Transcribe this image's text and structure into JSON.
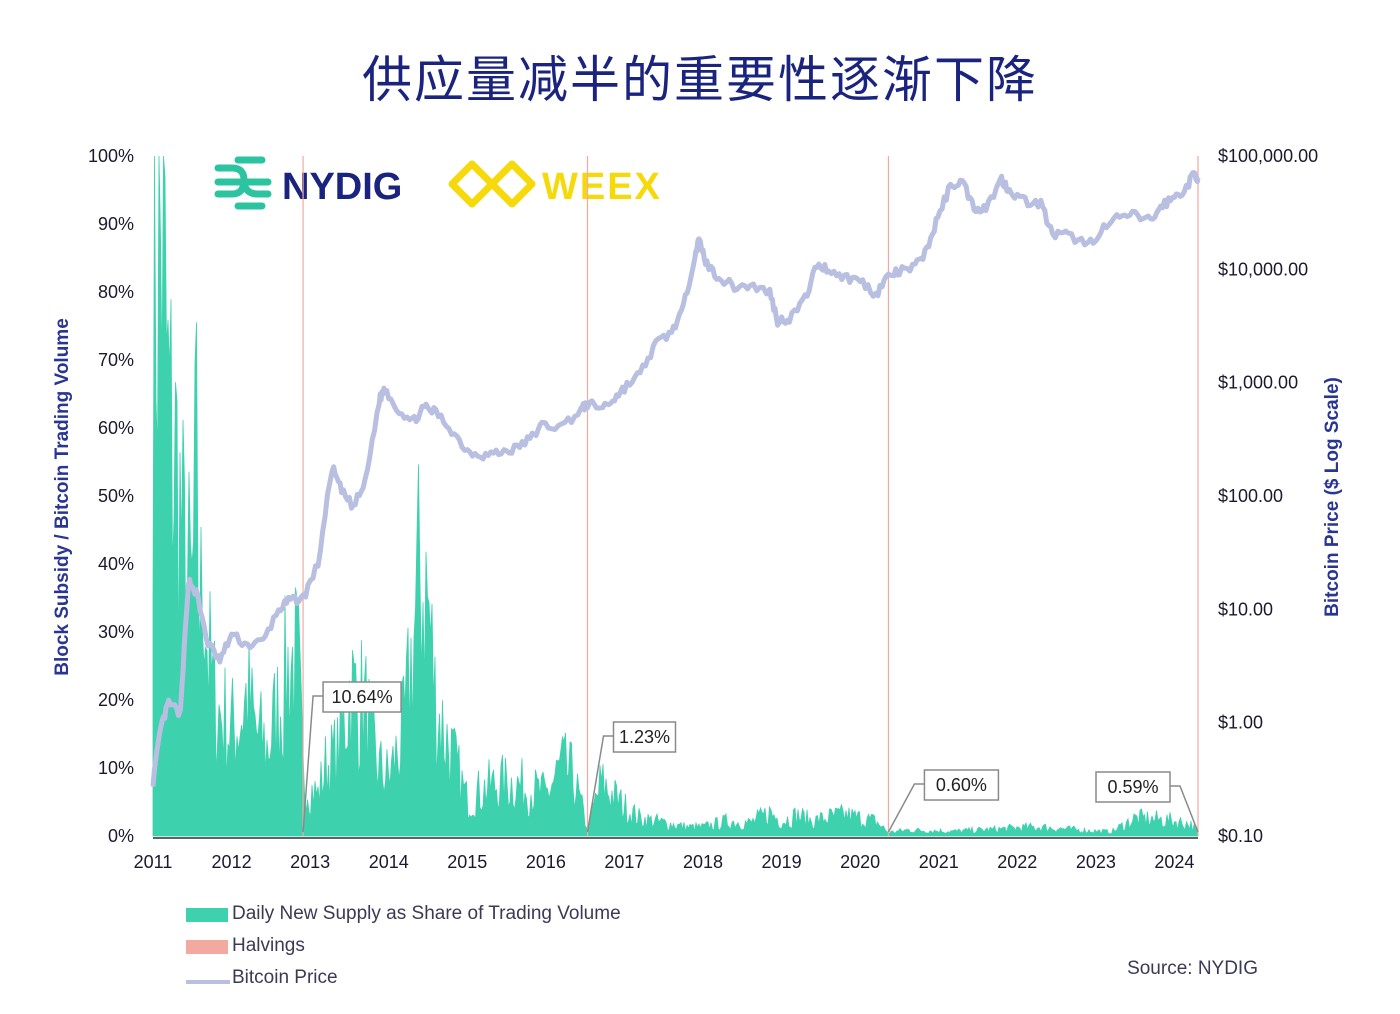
{
  "title": "供应量减半的重要性逐渐下降",
  "logos": {
    "nydig": "NYDIG",
    "weex": "WEEX",
    "nydig_color": "#2cc4a0",
    "nydig_text_color": "#1a237e",
    "weex_color": "#f5d90a"
  },
  "source": "Source: NYDIG",
  "legend": [
    {
      "label": "Daily New Supply as Share of Trading Volume",
      "color": "#3ed1ad",
      "kind": "swatch"
    },
    {
      "label": "Halvings",
      "color": "#f4a9a0",
      "kind": "swatch"
    },
    {
      "label": "Bitcoin Price",
      "color": "#b8bfe0",
      "kind": "line"
    }
  ],
  "chart_data": {
    "type": "area",
    "x_axis": {
      "range": [
        2011.0,
        2024.3
      ],
      "ticks": [
        "2011",
        "2012",
        "2013",
        "2014",
        "2015",
        "2016",
        "2017",
        "2018",
        "2019",
        "2020",
        "2021",
        "2022",
        "2023",
        "2024"
      ]
    },
    "y_left": {
      "label": "Block Subsidy / Bitcoin Trading Volume",
      "range": [
        0,
        100
      ],
      "ticks": [
        "0%",
        "10%",
        "20%",
        "30%",
        "40%",
        "50%",
        "60%",
        "70%",
        "80%",
        "90%",
        "100%"
      ]
    },
    "y_right": {
      "label": "Bitcoin Price ($ Log Scale)",
      "scale": "log",
      "range": [
        0.1,
        100000
      ],
      "ticks": [
        "$0.10",
        "$1.00",
        "$10.00",
        "$100.00",
        "$1,000.00",
        "$10,000.00",
        "$100,000.00"
      ]
    },
    "halvings": [
      2012.91,
      2016.53,
      2020.36,
      2024.3
    ],
    "callouts": [
      {
        "label": "10.64%",
        "x": 2012.91,
        "y": 10.64
      },
      {
        "label": "1.23%",
        "x": 2016.53,
        "y": 1.23
      },
      {
        "label": "0.60%",
        "x": 2020.36,
        "y": 0.6
      },
      {
        "label": "0.59%",
        "x": 2024.3,
        "y": 0.59
      }
    ],
    "series": [
      {
        "name": "Daily New Supply as Share of Trading Volume",
        "axis": "left",
        "color": "#3ed1ad",
        "points": [
          [
            2011.0,
            100
          ],
          [
            2011.12,
            100
          ],
          [
            2011.2,
            70
          ],
          [
            2011.3,
            62
          ],
          [
            2011.4,
            45
          ],
          [
            2011.5,
            40
          ],
          [
            2011.55,
            62
          ],
          [
            2011.6,
            35
          ],
          [
            2011.65,
            50
          ],
          [
            2011.7,
            30
          ],
          [
            2011.8,
            22
          ],
          [
            2011.9,
            20
          ],
          [
            2012.0,
            18
          ],
          [
            2012.1,
            20
          ],
          [
            2012.2,
            24
          ],
          [
            2012.3,
            18
          ],
          [
            2012.45,
            15
          ],
          [
            2012.6,
            22
          ],
          [
            2012.75,
            30
          ],
          [
            2012.85,
            28
          ],
          [
            2012.91,
            10.6
          ],
          [
            2013.0,
            8
          ],
          [
            2013.1,
            7
          ],
          [
            2013.2,
            12
          ],
          [
            2013.35,
            14
          ],
          [
            2013.5,
            25
          ],
          [
            2013.7,
            22
          ],
          [
            2013.85,
            12
          ],
          [
            2014.0,
            10
          ],
          [
            2014.2,
            18
          ],
          [
            2014.4,
            45
          ],
          [
            2014.5,
            40
          ],
          [
            2014.6,
            22
          ],
          [
            2014.8,
            14
          ],
          [
            2015.0,
            6
          ],
          [
            2015.2,
            8
          ],
          [
            2015.4,
            9
          ],
          [
            2015.6,
            9
          ],
          [
            2015.8,
            8
          ],
          [
            2016.0,
            7
          ],
          [
            2016.2,
            12
          ],
          [
            2016.35,
            10
          ],
          [
            2016.53,
            1.2
          ],
          [
            2016.7,
            9
          ],
          [
            2016.85,
            7
          ],
          [
            2017.0,
            5
          ],
          [
            2017.2,
            3
          ],
          [
            2017.4,
            2.5
          ],
          [
            2017.6,
            2
          ],
          [
            2017.8,
            1.5
          ],
          [
            2018.0,
            1.5
          ],
          [
            2018.3,
            2.5
          ],
          [
            2018.6,
            2.2
          ],
          [
            2018.85,
            4
          ],
          [
            2019.0,
            2.5
          ],
          [
            2019.2,
            3.5
          ],
          [
            2019.4,
            2.5
          ],
          [
            2019.6,
            3.2
          ],
          [
            2019.8,
            3.6
          ],
          [
            2020.0,
            3
          ],
          [
            2020.2,
            2.5
          ],
          [
            2020.36,
            0.6
          ],
          [
            2020.6,
            1
          ],
          [
            2020.9,
            0.9
          ],
          [
            2021.2,
            0.8
          ],
          [
            2021.5,
            1
          ],
          [
            2021.8,
            1.2
          ],
          [
            2022.0,
            1.4
          ],
          [
            2022.3,
            1.5
          ],
          [
            2022.6,
            1.2
          ],
          [
            2022.9,
            0.9
          ],
          [
            2023.2,
            0.7
          ],
          [
            2023.5,
            3
          ],
          [
            2023.8,
            2.8
          ],
          [
            2024.0,
            2.5
          ],
          [
            2024.2,
            2
          ],
          [
            2024.3,
            0.6
          ]
        ]
      },
      {
        "name": "Bitcoin Price",
        "axis": "right",
        "color": "#b8bfe0",
        "points": [
          [
            2011.0,
            0.3
          ],
          [
            2011.1,
            0.9
          ],
          [
            2011.2,
            1.5
          ],
          [
            2011.35,
            1.2
          ],
          [
            2011.45,
            18
          ],
          [
            2011.55,
            14
          ],
          [
            2011.7,
            5
          ],
          [
            2011.85,
            3.5
          ],
          [
            2012.0,
            6
          ],
          [
            2012.2,
            4.8
          ],
          [
            2012.4,
            5.2
          ],
          [
            2012.6,
            10
          ],
          [
            2012.75,
            12
          ],
          [
            2012.91,
            12.5
          ],
          [
            2013.1,
            25
          ],
          [
            2013.28,
            180
          ],
          [
            2013.4,
            110
          ],
          [
            2013.55,
            80
          ],
          [
            2013.7,
            130
          ],
          [
            2013.88,
            700
          ],
          [
            2013.95,
            900
          ],
          [
            2014.1,
            600
          ],
          [
            2014.3,
            450
          ],
          [
            2014.45,
            600
          ],
          [
            2014.6,
            550
          ],
          [
            2014.8,
            380
          ],
          [
            2015.0,
            250
          ],
          [
            2015.2,
            230
          ],
          [
            2015.4,
            240
          ],
          [
            2015.6,
            260
          ],
          [
            2015.8,
            320
          ],
          [
            2015.95,
            420
          ],
          [
            2016.2,
            410
          ],
          [
            2016.45,
            580
          ],
          [
            2016.53,
            650
          ],
          [
            2016.7,
            600
          ],
          [
            2016.85,
            700
          ],
          [
            2017.0,
            900
          ],
          [
            2017.2,
            1200
          ],
          [
            2017.4,
            2200
          ],
          [
            2017.6,
            2800
          ],
          [
            2017.75,
            4500
          ],
          [
            2017.9,
            14000
          ],
          [
            2017.95,
            18000
          ],
          [
            2018.05,
            11000
          ],
          [
            2018.2,
            8500
          ],
          [
            2018.4,
            7000
          ],
          [
            2018.6,
            7200
          ],
          [
            2018.85,
            6300
          ],
          [
            2018.95,
            3500
          ],
          [
            2019.1,
            3700
          ],
          [
            2019.3,
            5500
          ],
          [
            2019.45,
            11000
          ],
          [
            2019.6,
            10000
          ],
          [
            2019.8,
            8500
          ],
          [
            2020.0,
            8000
          ],
          [
            2020.2,
            6000
          ],
          [
            2020.36,
            8800
          ],
          [
            2020.5,
            9500
          ],
          [
            2020.7,
            10500
          ],
          [
            2020.85,
            15000
          ],
          [
            2020.99,
            29000
          ],
          [
            2021.15,
            55000
          ],
          [
            2021.3,
            60000
          ],
          [
            2021.45,
            35000
          ],
          [
            2021.6,
            35000
          ],
          [
            2021.8,
            62000
          ],
          [
            2021.9,
            50000
          ],
          [
            2022.1,
            40000
          ],
          [
            2022.3,
            38000
          ],
          [
            2022.45,
            20000
          ],
          [
            2022.65,
            20000
          ],
          [
            2022.9,
            16500
          ],
          [
            2023.1,
            23000
          ],
          [
            2023.3,
            29000
          ],
          [
            2023.5,
            30000
          ],
          [
            2023.7,
            27000
          ],
          [
            2023.85,
            37000
          ],
          [
            2024.0,
            43000
          ],
          [
            2024.15,
            52000
          ],
          [
            2024.25,
            70000
          ],
          [
            2024.3,
            64000
          ]
        ]
      }
    ]
  }
}
